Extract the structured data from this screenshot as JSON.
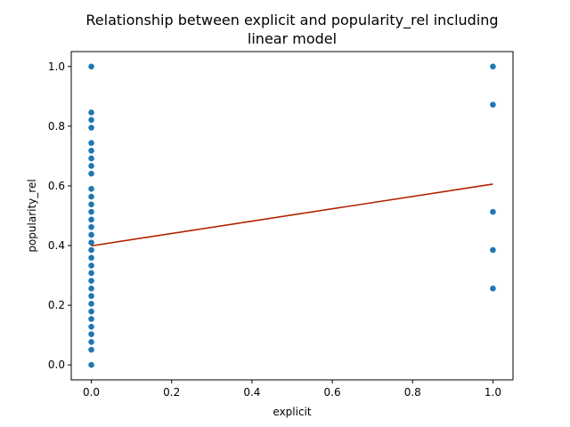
{
  "chart_data": {
    "type": "scatter",
    "title_lines": [
      "Relationship between explicit and popularity_rel including",
      "linear model"
    ],
    "xlabel": "explicit",
    "ylabel": "popularity_rel",
    "xlim": [
      -0.05,
      1.05
    ],
    "ylim": [
      -0.05,
      1.05
    ],
    "xticks": [
      0.0,
      0.2,
      0.4,
      0.6,
      0.8,
      1.0
    ],
    "xtick_labels": [
      "0.0",
      "0.2",
      "0.4",
      "0.6",
      "0.8",
      "1.0"
    ],
    "yticks": [
      0.0,
      0.2,
      0.4,
      0.6,
      0.8,
      1.0
    ],
    "ytick_labels": [
      "0.0",
      "0.2",
      "0.4",
      "0.6",
      "0.8",
      "1.0"
    ],
    "grid": false,
    "colors": {
      "points": "#1f77b4",
      "line": "#b22200"
    },
    "points": [
      {
        "x": 0,
        "y": 0.0
      },
      {
        "x": 0,
        "y": 0.051
      },
      {
        "x": 0,
        "y": 0.077
      },
      {
        "x": 0,
        "y": 0.103
      },
      {
        "x": 0,
        "y": 0.128
      },
      {
        "x": 0,
        "y": 0.154
      },
      {
        "x": 0,
        "y": 0.179
      },
      {
        "x": 0,
        "y": 0.205
      },
      {
        "x": 0,
        "y": 0.231
      },
      {
        "x": 0,
        "y": 0.256
      },
      {
        "x": 0,
        "y": 0.282
      },
      {
        "x": 0,
        "y": 0.308
      },
      {
        "x": 0,
        "y": 0.333
      },
      {
        "x": 0,
        "y": 0.359
      },
      {
        "x": 0,
        "y": 0.385
      },
      {
        "x": 0,
        "y": 0.41
      },
      {
        "x": 0,
        "y": 0.436
      },
      {
        "x": 0,
        "y": 0.462
      },
      {
        "x": 0,
        "y": 0.487
      },
      {
        "x": 0,
        "y": 0.513
      },
      {
        "x": 0,
        "y": 0.538
      },
      {
        "x": 0,
        "y": 0.564
      },
      {
        "x": 0,
        "y": 0.59
      },
      {
        "x": 0,
        "y": 0.641
      },
      {
        "x": 0,
        "y": 0.667
      },
      {
        "x": 0,
        "y": 0.692
      },
      {
        "x": 0,
        "y": 0.718
      },
      {
        "x": 0,
        "y": 0.744
      },
      {
        "x": 0,
        "y": 0.795
      },
      {
        "x": 0,
        "y": 0.821
      },
      {
        "x": 0,
        "y": 0.846
      },
      {
        "x": 0,
        "y": 1.0
      },
      {
        "x": 1,
        "y": 0.256
      },
      {
        "x": 1,
        "y": 0.385
      },
      {
        "x": 1,
        "y": 0.513
      },
      {
        "x": 1,
        "y": 0.872
      },
      {
        "x": 1,
        "y": 1.0
      }
    ],
    "fit_line": {
      "x": [
        0,
        1
      ],
      "y": [
        0.399,
        0.606
      ]
    }
  }
}
